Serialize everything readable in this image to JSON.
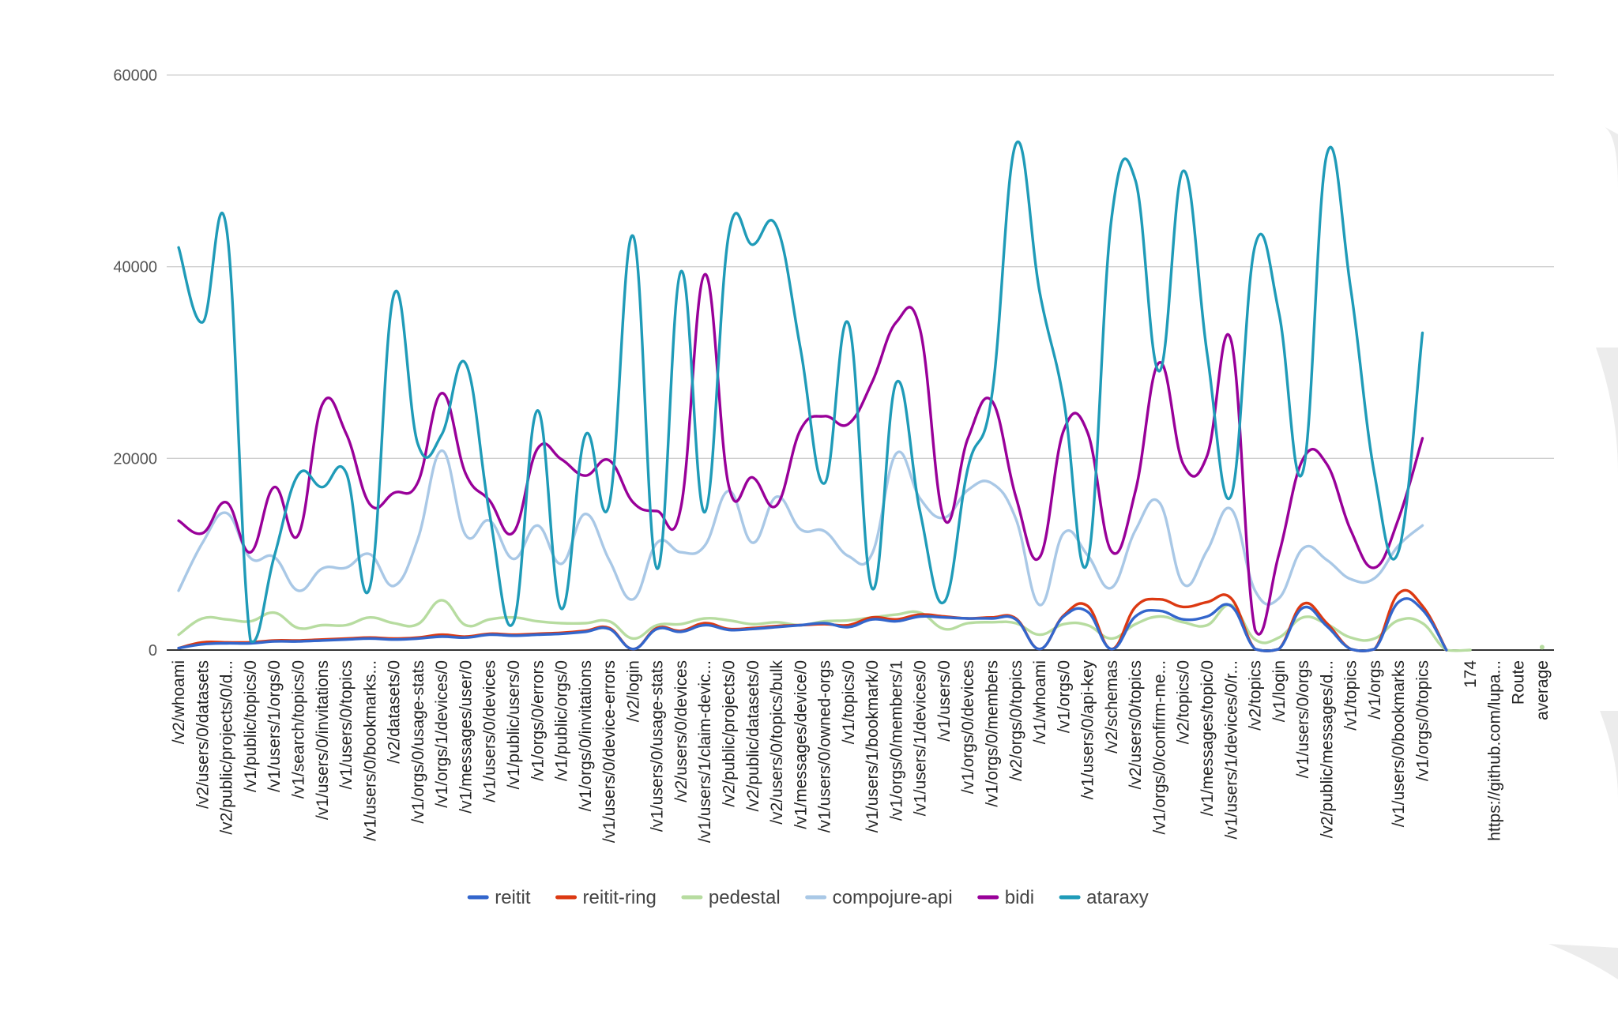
{
  "chart_data": {
    "type": "line",
    "y_ticks": [
      "0",
      "20000",
      "40000",
      "60000"
    ],
    "ylim": [
      0,
      60000
    ],
    "grid": true,
    "legend_position": "bottom",
    "categories": [
      "/v2/whoami",
      "/v2/users/0/datasets",
      "/v2/public/projects/0/d...",
      "/v1/public/topics/0",
      "/v1/users/1/orgs/0",
      "/v1/search/topics/0",
      "/v1/users/0/invitations",
      "/v1/users/0/topics",
      "/v1/users/0/bookmarks...",
      "/v2/datasets/0",
      "/v1/orgs/0/usage-stats",
      "/v1/orgs/1/devices/0",
      "/v1/messages/user/0",
      "/v1/users/0/devices",
      "/v1/public/users/0",
      "/v1/orgs/0/errors",
      "/v1/public/orgs/0",
      "/v1/orgs/0/invitations",
      "/v1/users/0/device-errors",
      "/v2/login",
      "/v1/users/0/usage-stats",
      "/v2/users/0/devices",
      "/v1/users/1/claim-devic...",
      "/v2/public/projects/0",
      "/v2/public/datasets/0",
      "/v2/users/0/topics/bulk",
      "/v1/messages/device/0",
      "/v1/users/0/owned-orgs",
      "/v1/topics/0",
      "/v1/users/1/bookmark/0",
      "/v1/orgs/0/members/1",
      "/v1/users/1/devices/0",
      "/v1/users/0",
      "/v1/orgs/0/devices",
      "/v1/orgs/0/members",
      "/v2/orgs/0/topics",
      "/v1/whoami",
      "/v1/orgs/0",
      "/v1/users/0/api-key",
      "/v2/schemas",
      "/v2/users/0/topics",
      "/v1/orgs/0/confirm-me...",
      "/v2/topics/0",
      "/v1/messages/topic/0",
      "/v1/users/1/devices/0/r...",
      "/v2/topics",
      "/v1/login",
      "/v1/users/0/orgs",
      "/v2/public/messages/d...",
      "/v1/topics",
      "/v1/orgs",
      "/v1/users/0/bookmarks",
      "/v1/orgs/0/topics",
      "",
      "174",
      "https://github.com/lupa...",
      "Route",
      "average"
    ],
    "series": [
      {
        "name": "reitit",
        "color": "#3366cc",
        "values": [
          200,
          600,
          700,
          700,
          900,
          900,
          1000,
          1100,
          1200,
          1100,
          1200,
          1400,
          1300,
          1600,
          1500,
          1600,
          1700,
          1900,
          2200,
          100,
          2200,
          1900,
          2600,
          2100,
          2200,
          2400,
          2600,
          2800,
          2400,
          3200,
          3000,
          3500,
          3400,
          3300,
          3300,
          3200,
          100,
          3500,
          4000,
          100,
          3500,
          4100,
          3200,
          3500,
          4600,
          100,
          100,
          4400,
          2500,
          100,
          100,
          5000,
          4200,
          0,
          null,
          null,
          null,
          null
        ]
      },
      {
        "name": "reitit-ring",
        "color": "#dc3912",
        "values": [
          200,
          800,
          800,
          800,
          1000,
          1000,
          1100,
          1200,
          1300,
          1200,
          1300,
          1600,
          1400,
          1700,
          1600,
          1700,
          1800,
          2000,
          2300,
          100,
          2300,
          2000,
          2800,
          2200,
          2300,
          2500,
          2600,
          2700,
          2600,
          3400,
          3200,
          3700,
          3500,
          3300,
          3400,
          3300,
          100,
          3600,
          4600,
          100,
          4500,
          5300,
          4500,
          5000,
          5400,
          100,
          100,
          4800,
          2800,
          100,
          100,
          5900,
          4600,
          0,
          null,
          null,
          null,
          null
        ]
      },
      {
        "name": "pedestal",
        "color": "#b7dca0",
        "values": [
          1600,
          3300,
          3200,
          3000,
          3900,
          2300,
          2600,
          2600,
          3400,
          2800,
          2700,
          5200,
          2600,
          3200,
          3400,
          3000,
          2800,
          2800,
          3000,
          1200,
          2600,
          2700,
          3300,
          3100,
          2700,
          2900,
          2600,
          3000,
          3100,
          3400,
          3700,
          3900,
          2200,
          2800,
          2900,
          2800,
          1600,
          2700,
          2600,
          1200,
          2700,
          3500,
          2900,
          2600,
          4700,
          1100,
          1300,
          3400,
          2700,
          1300,
          1200,
          3100,
          2800,
          0,
          0,
          null,
          null,
          300
        ]
      },
      {
        "name": "compojure-api",
        "color": "#a9c8e6",
        "values": [
          6200,
          11200,
          14300,
          9600,
          9700,
          6200,
          8500,
          8600,
          10000,
          6700,
          11600,
          20800,
          12000,
          13500,
          9500,
          13000,
          9000,
          14200,
          9400,
          5300,
          11200,
          10200,
          10900,
          16600,
          11200,
          16000,
          12600,
          12400,
          9800,
          10100,
          20500,
          15800,
          13800,
          16700,
          17400,
          13700,
          4700,
          12200,
          9900,
          6500,
          12500,
          15400,
          6900,
          10400,
          14700,
          6200,
          5400,
          10600,
          9400,
          7400,
          7500,
          10900,
          13000,
          null,
          null,
          null,
          null,
          null
        ]
      },
      {
        "name": "bidi",
        "color": "#990099",
        "values": [
          13500,
          12200,
          15400,
          10200,
          17000,
          12000,
          25600,
          22600,
          15200,
          16400,
          17500,
          26800,
          18400,
          15600,
          12300,
          21000,
          19900,
          18200,
          19800,
          15400,
          14500,
          14900,
          39200,
          17100,
          18000,
          15100,
          23000,
          24400,
          23600,
          28000,
          34200,
          33400,
          13700,
          22100,
          26000,
          16000,
          9700,
          22900,
          22700,
          10300,
          16600,
          30000,
          19400,
          20300,
          32300,
          2100,
          10000,
          19900,
          19400,
          12500,
          8600,
          13700,
          22100,
          null,
          null,
          null,
          null,
          null
        ]
      },
      {
        "name": "ataraxy",
        "color": "#1f9bb8",
        "values": [
          42000,
          34200,
          44000,
          1000,
          9800,
          18300,
          17000,
          18500,
          6600,
          37100,
          21500,
          22500,
          29900,
          14200,
          2900,
          25000,
          4300,
          22400,
          15200,
          43200,
          8500,
          39500,
          14400,
          43400,
          42300,
          44200,
          31400,
          17400,
          34100,
          6400,
          27900,
          14400,
          5000,
          19000,
          26600,
          52800,
          37300,
          26100,
          9200,
          45000,
          49000,
          29100,
          50000,
          30900,
          16100,
          42200,
          35200,
          18600,
          51700,
          37700,
          18300,
          10300,
          33100,
          null,
          null,
          null,
          null,
          null
        ]
      }
    ]
  }
}
